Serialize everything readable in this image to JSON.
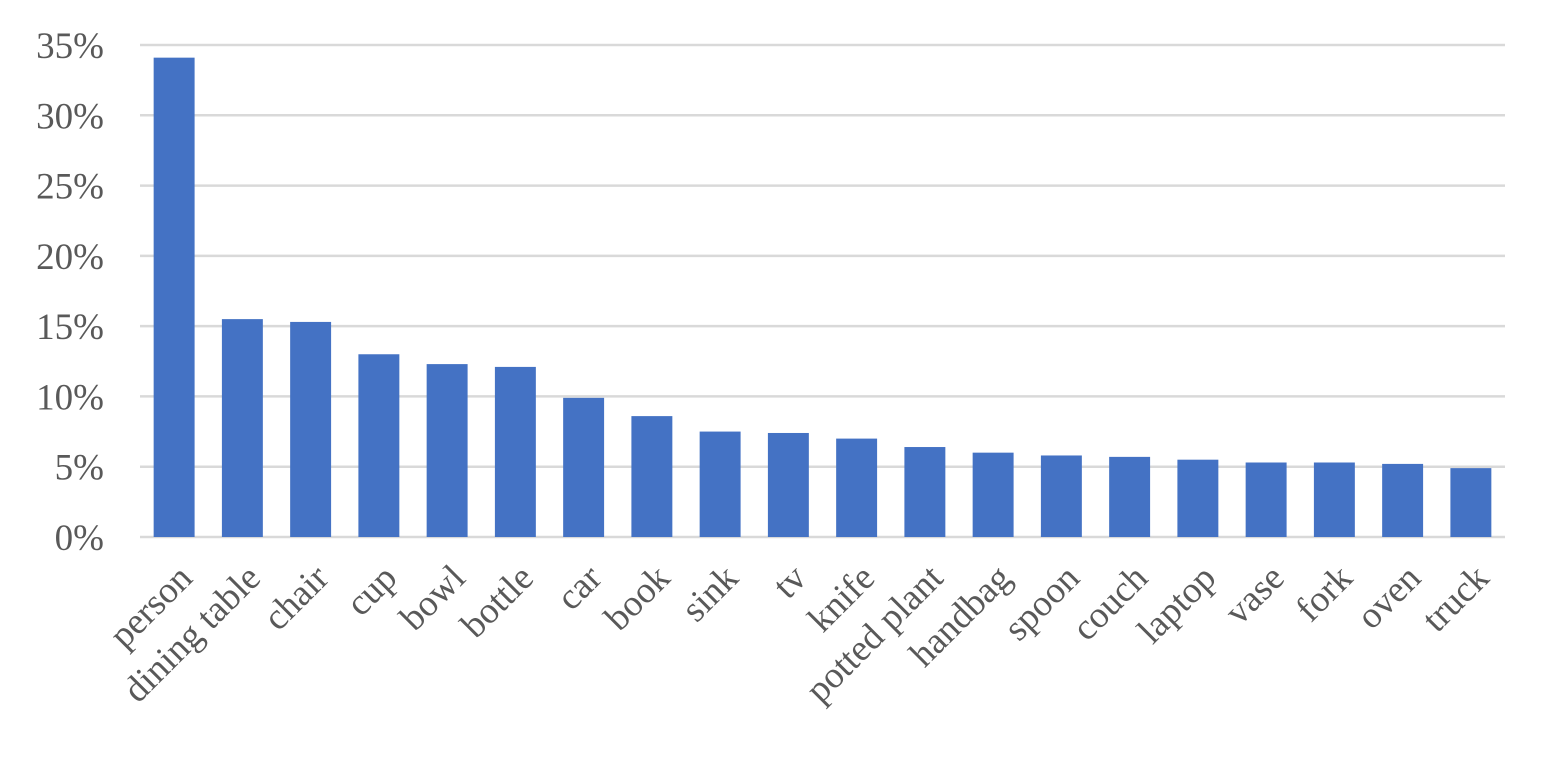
{
  "chart_data": {
    "type": "bar",
    "categories": [
      "person",
      "dining table",
      "chair",
      "cup",
      "bowl",
      "bottle",
      "car",
      "book",
      "sink",
      "tv",
      "knife",
      "potted plant",
      "handbag",
      "spoon",
      "couch",
      "laptop",
      "vase",
      "fork",
      "oven",
      "truck"
    ],
    "values": [
      34.1,
      15.5,
      15.3,
      13.0,
      12.3,
      12.1,
      9.9,
      8.6,
      7.5,
      7.4,
      7.0,
      6.4,
      6.0,
      5.8,
      5.7,
      5.5,
      5.3,
      5.3,
      5.2,
      4.9
    ],
    "ylim": [
      0,
      35
    ],
    "yticks": [
      "0%",
      "5%",
      "10%",
      "15%",
      "20%",
      "25%",
      "30%",
      "35%"
    ],
    "ytick_values": [
      0,
      5,
      10,
      15,
      20,
      25,
      30,
      35
    ],
    "title": "",
    "xlabel": "",
    "ylabel": "",
    "bar_color": "#4472c4",
    "grid": true,
    "legend": "none"
  }
}
